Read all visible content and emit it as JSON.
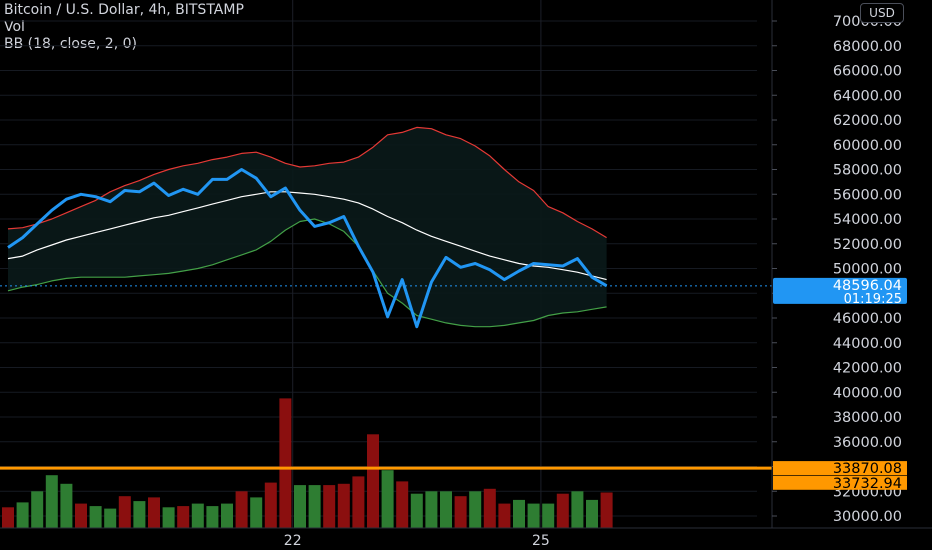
{
  "legend": {
    "symbol": "Bitcoin / U.S. Dollar, 4h, BITSTAMP",
    "volume": "Vol",
    "indicator": "BB (18, close, 2, 0)"
  },
  "currency_button": "USD",
  "colors": {
    "price": "#2196f3",
    "bb_upper": "#e53935",
    "bb_middle": "#ffffff",
    "bb_lower": "#43a047",
    "volume_up": "#2e7d32",
    "volume_down": "#8b0f0f",
    "horizontal_line": "#ff9800",
    "last_price_label": "#2196f3"
  },
  "chart_data": {
    "type": "line",
    "y_ticks": [
      "30000.00",
      "32000.00",
      "34000.00",
      "36000.00",
      "38000.00",
      "40000.00",
      "42000.00",
      "44000.00",
      "46000.00",
      "48000.00",
      "50000.00",
      "52000.00",
      "54000.00",
      "56000.00",
      "58000.00",
      "60000.00",
      "62000.00",
      "64000.00",
      "66000.00",
      "68000.00",
      "70000.00"
    ],
    "ylim": [
      29200,
      70500
    ],
    "x_ticks": [
      {
        "label": "22",
        "index": 19.5
      },
      {
        "label": "25",
        "index": 36.5
      }
    ],
    "series": [
      {
        "role": "price",
        "values": [
          51700,
          52500,
          53600,
          54700,
          55600,
          56000,
          55800,
          55400,
          56300,
          56200,
          56900,
          55900,
          56400,
          56000,
          57200,
          57200,
          58000,
          57300,
          55800,
          56500,
          54700,
          53400,
          53700,
          54200,
          51800,
          49700,
          46100,
          49100,
          45300,
          48900,
          50900,
          50100,
          50400,
          49900,
          49100,
          49800,
          50400,
          50300,
          50200,
          50800,
          49300,
          48600
        ]
      },
      {
        "role": "bb_upper",
        "values": [
          53200,
          53300,
          53600,
          54000,
          54500,
          55000,
          55500,
          56200,
          56700,
          57100,
          57600,
          58000,
          58300,
          58500,
          58800,
          59000,
          59300,
          59400,
          59000,
          58500,
          58200,
          58300,
          58500,
          58600,
          59000,
          59800,
          60800,
          61000,
          61400,
          61300,
          60800,
          60500,
          59900,
          59100,
          58000,
          57000,
          56300,
          55000,
          54500,
          53800,
          53200,
          52500
        ]
      },
      {
        "role": "bb_middle",
        "values": [
          50800,
          51000,
          51500,
          51900,
          52300,
          52600,
          52900,
          53200,
          53500,
          53800,
          54100,
          54300,
          54600,
          54900,
          55200,
          55500,
          55800,
          56000,
          56200,
          56200,
          56100,
          56000,
          55800,
          55600,
          55300,
          54800,
          54200,
          53700,
          53100,
          52600,
          52200,
          51800,
          51400,
          51000,
          50700,
          50400,
          50200,
          50100,
          49900,
          49700,
          49400,
          49100
        ]
      },
      {
        "role": "bb_lower",
        "values": [
          48200,
          48500,
          48700,
          49000,
          49200,
          49300,
          49300,
          49300,
          49300,
          49400,
          49500,
          49600,
          49800,
          50000,
          50300,
          50700,
          51100,
          51500,
          52200,
          53100,
          53800,
          54000,
          53600,
          53000,
          51800,
          49800,
          48000,
          47200,
          46200,
          45900,
          45600,
          45400,
          45300,
          45300,
          45400,
          45600,
          45800,
          46200,
          46400,
          46500,
          46700,
          46900
        ]
      },
      {
        "role": "volume",
        "values": [
          30700,
          31100,
          32000,
          33300,
          32600,
          31000,
          30800,
          30600,
          31600,
          31200,
          31500,
          30700,
          30800,
          31000,
          30800,
          31000,
          32000,
          31500,
          32700,
          39500,
          32500,
          32500,
          32500,
          32600,
          33200,
          36600,
          33700,
          32800,
          31800,
          32000,
          32000,
          31600,
          32000,
          32200,
          31000,
          31300,
          31000,
          31000,
          31800,
          32000,
          31300,
          31900
        ]
      },
      {
        "role": "volume_up",
        "values": [
          0,
          1,
          1,
          1,
          1,
          0,
          1,
          1,
          0,
          1,
          0,
          1,
          0,
          1,
          1,
          1,
          0,
          1,
          0,
          0,
          1,
          1,
          0,
          0,
          0,
          0,
          1,
          0,
          1,
          1,
          1,
          0,
          1,
          0,
          0,
          1,
          1,
          1,
          0,
          1,
          1,
          0
        ]
      }
    ],
    "last_price": {
      "value": "48596.04",
      "countdown": "01:19:25"
    },
    "horizontal_lines": [
      {
        "value": "33870.08"
      },
      {
        "value": "33732.94"
      }
    ]
  }
}
